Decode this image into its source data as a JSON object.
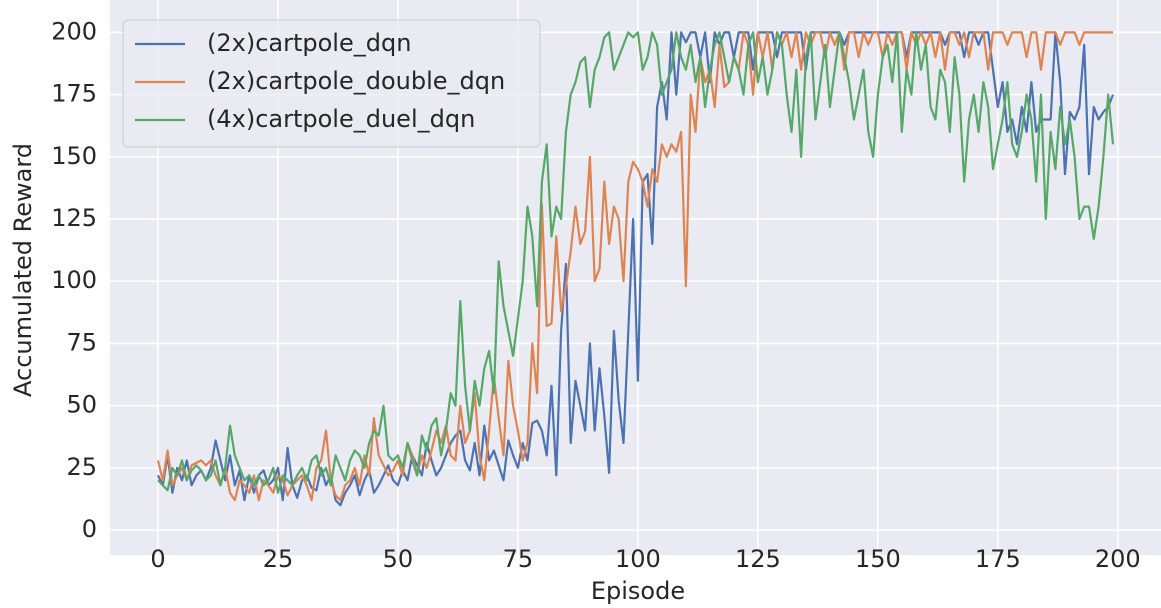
{
  "chart_data": {
    "type": "line",
    "xlabel": "Episode",
    "ylabel": "Accumulated Reward",
    "x": [
      0,
      1,
      2,
      3,
      4,
      5,
      6,
      7,
      8,
      9,
      10,
      11,
      12,
      13,
      14,
      15,
      16,
      17,
      18,
      19,
      20,
      21,
      22,
      23,
      24,
      25,
      26,
      27,
      28,
      29,
      30,
      31,
      32,
      33,
      34,
      35,
      36,
      37,
      38,
      39,
      40,
      41,
      42,
      43,
      44,
      45,
      46,
      47,
      48,
      49,
      50,
      51,
      52,
      53,
      54,
      55,
      56,
      57,
      58,
      59,
      60,
      61,
      62,
      63,
      64,
      65,
      66,
      67,
      68,
      69,
      70,
      71,
      72,
      73,
      74,
      75,
      76,
      77,
      78,
      79,
      80,
      81,
      82,
      83,
      84,
      85,
      86,
      87,
      88,
      89,
      90,
      91,
      92,
      93,
      94,
      95,
      96,
      97,
      98,
      99,
      100,
      101,
      102,
      103,
      104,
      105,
      106,
      107,
      108,
      109,
      110,
      111,
      112,
      113,
      114,
      115,
      116,
      117,
      118,
      119,
      120,
      121,
      122,
      123,
      124,
      125,
      126,
      127,
      128,
      129,
      130,
      131,
      132,
      133,
      134,
      135,
      136,
      137,
      138,
      139,
      140,
      141,
      142,
      143,
      144,
      145,
      146,
      147,
      148,
      149,
      150,
      151,
      152,
      153,
      154,
      155,
      156,
      157,
      158,
      159,
      160,
      161,
      162,
      163,
      164,
      165,
      166,
      167,
      168,
      169,
      170,
      171,
      172,
      173,
      174,
      175,
      176,
      177,
      178,
      179,
      180,
      181,
      182,
      183,
      184,
      185,
      186,
      187,
      188,
      189,
      190,
      191,
      192,
      193,
      194,
      195,
      196,
      197,
      198,
      199
    ],
    "series": [
      {
        "name": "(2x)cartpole_dqn",
        "color": "#4c72b0",
        "values": [
          22,
          18,
          30,
          15,
          25,
          20,
          28,
          18,
          22,
          24,
          20,
          25,
          36,
          28,
          20,
          30,
          18,
          24,
          12,
          22,
          15,
          22,
          24,
          18,
          20,
          25,
          12,
          33,
          18,
          13,
          20,
          22,
          17,
          16,
          25,
          18,
          22,
          12,
          10,
          15,
          18,
          22,
          14,
          20,
          24,
          15,
          18,
          22,
          26,
          20,
          18,
          24,
          20,
          30,
          26,
          22,
          35,
          28,
          22,
          25,
          30,
          35,
          38,
          40,
          28,
          24,
          35,
          22,
          42,
          28,
          32,
          26,
          20,
          36,
          30,
          25,
          35,
          28,
          43,
          44,
          40,
          30,
          58,
          22,
          80,
          107,
          35,
          60,
          50,
          40,
          75,
          40,
          65,
          46,
          23,
          80,
          52,
          35,
          80,
          125,
          60,
          140,
          143,
          115,
          170,
          180,
          165,
          200,
          175,
          200,
          196,
          200,
          200,
          190,
          200,
          180,
          200,
          195,
          200,
          200,
          190,
          200,
          200,
          200,
          185,
          200,
          200,
          200,
          200,
          190,
          200,
          200,
          200,
          200,
          200,
          185,
          200,
          200,
          200,
          200,
          200,
          200,
          200,
          195,
          200,
          200,
          200,
          200,
          200,
          200,
          200,
          200,
          200,
          200,
          200,
          200,
          190,
          200,
          200,
          200,
          200,
          200,
          200,
          200,
          195,
          200,
          200,
          200,
          190,
          200,
          200,
          195,
          200,
          200,
          185,
          170,
          180,
          160,
          165,
          155,
          170,
          160,
          180,
          160,
          165,
          165,
          165,
          200,
          180,
          143,
          168,
          165,
          170,
          195,
          143,
          170,
          165,
          168,
          170,
          175
        ]
      },
      {
        "name": "(2x)cartpole_double_dqn",
        "color": "#dd8452",
        "values": [
          28,
          20,
          32,
          18,
          22,
          25,
          20,
          26,
          27,
          28,
          26,
          28,
          22,
          18,
          25,
          15,
          12,
          20,
          18,
          15,
          22,
          12,
          20,
          18,
          15,
          22,
          20,
          14,
          18,
          20,
          22,
          18,
          12,
          25,
          28,
          40,
          20,
          14,
          12,
          18,
          20,
          25,
          18,
          30,
          22,
          45,
          30,
          26,
          22,
          24,
          28,
          22,
          35,
          30,
          22,
          30,
          25,
          32,
          40,
          35,
          42,
          30,
          28,
          50,
          35,
          40,
          55,
          30,
          20,
          40,
          62,
          45,
          30,
          68,
          50,
          40,
          28,
          35,
          75,
          55,
          131,
          82,
          83,
          118,
          88,
          98,
          112,
          130,
          115,
          120,
          150,
          100,
          105,
          140,
          115,
          130,
          125,
          100,
          140,
          148,
          145,
          140,
          130,
          145,
          140,
          155,
          150,
          155,
          152,
          160,
          98,
          175,
          160,
          190,
          180,
          185,
          170,
          195,
          178,
          180,
          190,
          185,
          200,
          195,
          175,
          200,
          190,
          200,
          185,
          200,
          195,
          200,
          190,
          200,
          185,
          200,
          195,
          200,
          200,
          190,
          200,
          195,
          200,
          185,
          200,
          200,
          190,
          200,
          195,
          200,
          200,
          190,
          200,
          195,
          200,
          200,
          185,
          200,
          195,
          200,
          195,
          200,
          190,
          200,
          185,
          200,
          200,
          195,
          200,
          190,
          200,
          200,
          200,
          185,
          200,
          200,
          200,
          195,
          200,
          200,
          200,
          190,
          200,
          200,
          185,
          200,
          200,
          200,
          195,
          200,
          200,
          200,
          195,
          200,
          200,
          200,
          200,
          200,
          200,
          200
        ]
      },
      {
        "name": "(4x)cartpole_duel_dqn",
        "color": "#55a868",
        "values": [
          20,
          18,
          16,
          25,
          22,
          28,
          20,
          24,
          26,
          24,
          20,
          22,
          28,
          18,
          25,
          42,
          30,
          25,
          20,
          22,
          18,
          22,
          18,
          20,
          25,
          15,
          22,
          20,
          18,
          22,
          25,
          20,
          28,
          30,
          22,
          25,
          18,
          30,
          25,
          20,
          28,
          32,
          30,
          25,
          35,
          40,
          38,
          50,
          30,
          28,
          30,
          25,
          35,
          28,
          22,
          38,
          32,
          42,
          45,
          30,
          40,
          55,
          50,
          92,
          58,
          40,
          60,
          50,
          65,
          72,
          55,
          108,
          90,
          80,
          70,
          85,
          100,
          130,
          118,
          90,
          140,
          155,
          118,
          130,
          125,
          160,
          175,
          180,
          188,
          190,
          170,
          185,
          190,
          198,
          200,
          185,
          190,
          195,
          200,
          198,
          200,
          185,
          190,
          200,
          195,
          175,
          180,
          185,
          200,
          190,
          185,
          195,
          180,
          190,
          170,
          185,
          195,
          200,
          190,
          180,
          190,
          185,
          175,
          195,
          200,
          180,
          190,
          175,
          185,
          200,
          195,
          175,
          160,
          185,
          150,
          190,
          200,
          165,
          180,
          195,
          170,
          185,
          200,
          190,
          180,
          165,
          175,
          185,
          160,
          150,
          175,
          190,
          195,
          180,
          200,
          160,
          185,
          175,
          200,
          185,
          195,
          170,
          165,
          185,
          180,
          160,
          190,
          175,
          140,
          165,
          175,
          160,
          180,
          170,
          145,
          155,
          165,
          180,
          155,
          150,
          160,
          175,
          165,
          140,
          175,
          125,
          160,
          145,
          170,
          155,
          165,
          150,
          125,
          130,
          130,
          117,
          130,
          150,
          175,
          155
        ]
      }
    ],
    "xlim": [
      -10,
      209
    ],
    "ylim": [
      -10,
      213
    ],
    "xticks": [
      0,
      25,
      50,
      75,
      100,
      125,
      150,
      175,
      200
    ],
    "yticks": [
      0,
      25,
      50,
      75,
      100,
      125,
      150,
      175,
      200
    ],
    "grid": true,
    "legend": "upper-left"
  }
}
